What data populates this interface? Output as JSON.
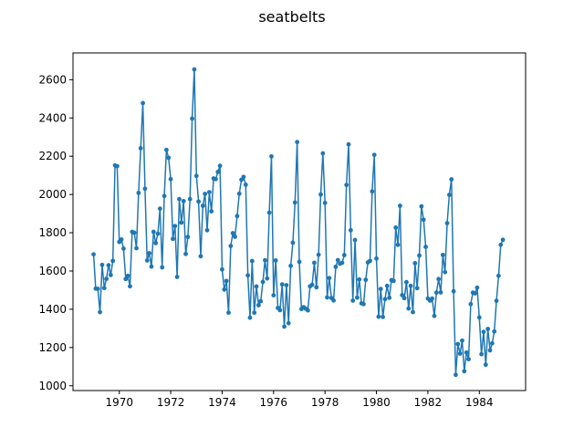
{
  "chart_data": {
    "type": "line",
    "title": "seatbelts",
    "xlabel": "",
    "ylabel": "",
    "xlim": [
      1968.2,
      1985.8
    ],
    "ylim": [
      975,
      2740
    ],
    "x_ticks": [
      1970,
      1972,
      1974,
      1976,
      1978,
      1980,
      1982,
      1984
    ],
    "x_tick_labels": [
      "1970",
      "1972",
      "1974",
      "1976",
      "1978",
      "1980",
      "1982",
      "1984"
    ],
    "y_ticks": [
      1000,
      1200,
      1400,
      1600,
      1800,
      2000,
      2200,
      2400,
      2600
    ],
    "y_tick_labels": [
      "1000",
      "1200",
      "1400",
      "1600",
      "1800",
      "2000",
      "2200",
      "2400",
      "2600"
    ],
    "grid": false,
    "color": "#1f77b4",
    "x_start": 1969.0,
    "x_step": 0.0833333,
    "values": [
      1687,
      1508,
      1507,
      1385,
      1632,
      1511,
      1559,
      1630,
      1579,
      1653,
      2152,
      2148,
      1752,
      1765,
      1717,
      1558,
      1575,
      1520,
      1805,
      1800,
      1719,
      2008,
      2242,
      2478,
      2030,
      1655,
      1693,
      1623,
      1805,
      1746,
      1795,
      1926,
      1619,
      1992,
      2233,
      2192,
      2080,
      1768,
      1835,
      1569,
      1976,
      1853,
      1965,
      1689,
      1778,
      1976,
      2397,
      2654,
      2097,
      1963,
      1677,
      1941,
      2003,
      1813,
      2012,
      1912,
      2084,
      2080,
      2118,
      2150,
      1608,
      1503,
      1548,
      1382,
      1731,
      1798,
      1779,
      1887,
      2004,
      2077,
      2092,
      2051,
      1577,
      1356,
      1652,
      1382,
      1519,
      1421,
      1442,
      1543,
      1656,
      1561,
      1905,
      2199,
      1473,
      1655,
      1407,
      1395,
      1530,
      1309,
      1526,
      1327,
      1627,
      1748,
      1958,
      2274,
      1648,
      1401,
      1411,
      1403,
      1394,
      1520,
      1528,
      1643,
      1515,
      1685,
      2000,
      2215,
      1956,
      1462,
      1563,
      1459,
      1446,
      1622,
      1657,
      1638,
      1643,
      1683,
      2050,
      2262,
      1813,
      1445,
      1762,
      1461,
      1556,
      1431,
      1427,
      1554,
      1645,
      1653,
      2016,
      2207,
      1665,
      1361,
      1506,
      1360,
      1453,
      1522,
      1460,
      1552,
      1548,
      1827,
      1737,
      1941,
      1474,
      1458,
      1542,
      1404,
      1522,
      1385,
      1641,
      1510,
      1681,
      1938,
      1868,
      1726,
      1456,
      1445,
      1456,
      1365,
      1487,
      1558,
      1488,
      1684,
      1594,
      1850,
      1998,
      2079,
      1494,
      1057,
      1218,
      1168,
      1236,
      1076,
      1174,
      1139,
      1427,
      1487,
      1483,
      1513,
      1357,
      1165,
      1282,
      1110,
      1297,
      1185,
      1222,
      1284,
      1444,
      1575,
      1737,
      1763
    ]
  }
}
